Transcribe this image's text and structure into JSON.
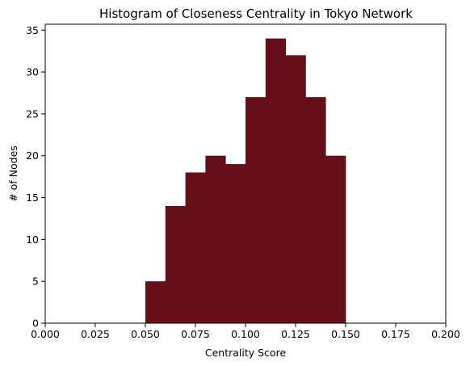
{
  "chart_data": {
    "type": "bar",
    "title": "Histogram of Closeness Centrality in Tokyo Network",
    "xlabel": "Centrality Score",
    "ylabel": "# of Nodes",
    "xlim": [
      0.0,
      0.2
    ],
    "ylim": [
      0,
      35.7
    ],
    "grid": false,
    "bar_color": "#670e19",
    "bins": [
      {
        "x0": 0.05,
        "x1": 0.06,
        "count": 5
      },
      {
        "x0": 0.06,
        "x1": 0.07,
        "count": 14
      },
      {
        "x0": 0.07,
        "x1": 0.08,
        "count": 18
      },
      {
        "x0": 0.08,
        "x1": 0.09,
        "count": 20
      },
      {
        "x0": 0.09,
        "x1": 0.1,
        "count": 19
      },
      {
        "x0": 0.1,
        "x1": 0.11,
        "count": 27
      },
      {
        "x0": 0.11,
        "x1": 0.12,
        "count": 34
      },
      {
        "x0": 0.12,
        "x1": 0.13,
        "count": 32
      },
      {
        "x0": 0.13,
        "x1": 0.14,
        "count": 27
      },
      {
        "x0": 0.14,
        "x1": 0.15,
        "count": 20
      }
    ],
    "x_ticks": [
      0.0,
      0.025,
      0.05,
      0.075,
      0.1,
      0.125,
      0.15,
      0.175,
      0.2
    ],
    "x_tick_labels": [
      "0.000",
      "0.025",
      "0.050",
      "0.075",
      "0.100",
      "0.125",
      "0.150",
      "0.175",
      "0.200"
    ],
    "y_ticks": [
      0,
      5,
      10,
      15,
      20,
      25,
      30,
      35
    ],
    "y_tick_labels": [
      "0",
      "5",
      "10",
      "15",
      "20",
      "25",
      "30",
      "35"
    ]
  }
}
